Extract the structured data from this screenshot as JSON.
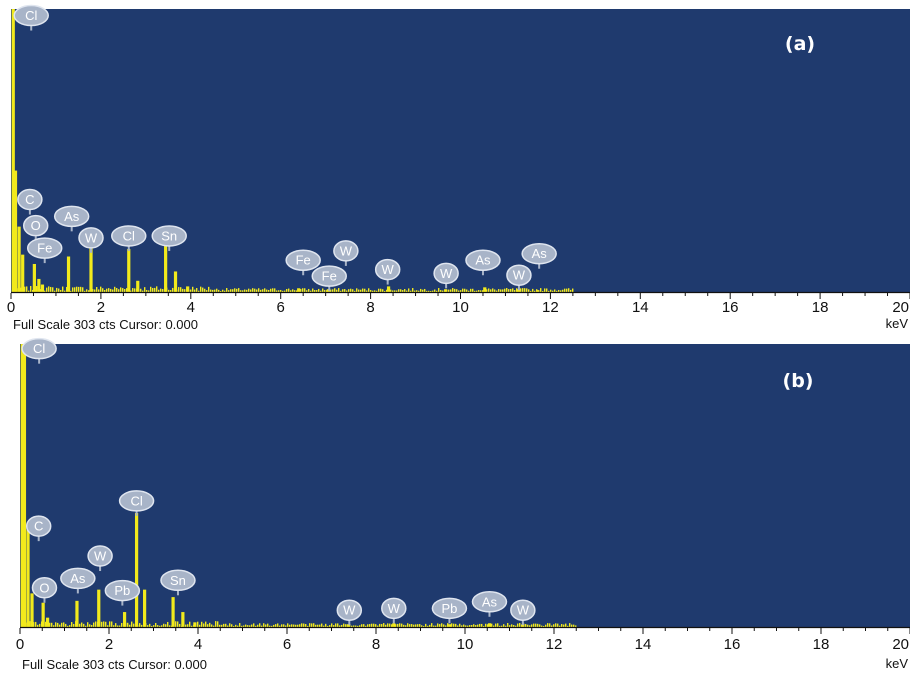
{
  "colors": {
    "plot_background": "#1f3a6e",
    "spectrum": "#f2ea1c",
    "peak_tag_fill": "#a8b4c8",
    "peak_tag_stroke": "#dfe5ef",
    "axis": "#111111"
  },
  "chart_data": [
    {
      "type": "bar",
      "panel_label": "(a)",
      "status_text": "Full Scale 303 cts Cursor: 0.000",
      "xlabel": "keV",
      "xlim": [
        0,
        20
      ],
      "ylim": [
        0,
        303
      ],
      "xticks": [
        0,
        2,
        4,
        6,
        8,
        10,
        12,
        14,
        16,
        18,
        20
      ],
      "spectrum": [
        {
          "kev": 0.05,
          "counts": 303
        },
        {
          "kev": 0.1,
          "counts": 130
        },
        {
          "kev": 0.18,
          "counts": 70
        },
        {
          "kev": 0.26,
          "counts": 40
        },
        {
          "kev": 0.52,
          "counts": 30
        },
        {
          "kev": 0.62,
          "counts": 14
        },
        {
          "kev": 0.7,
          "counts": 8
        },
        {
          "kev": 1.28,
          "counts": 38
        },
        {
          "kev": 1.78,
          "counts": 48
        },
        {
          "kev": 2.62,
          "counts": 46
        },
        {
          "kev": 2.82,
          "counts": 12
        },
        {
          "kev": 3.44,
          "counts": 50
        },
        {
          "kev": 3.66,
          "counts": 22
        },
        {
          "kev": 3.93,
          "counts": 6
        },
        {
          "kev": 6.4,
          "counts": 4
        },
        {
          "kev": 7.06,
          "counts": 3
        },
        {
          "kev": 8.4,
          "counts": 6
        },
        {
          "kev": 9.67,
          "counts": 3
        },
        {
          "kev": 10.54,
          "counts": 5
        },
        {
          "kev": 11.29,
          "counts": 3
        },
        {
          "kev": 11.72,
          "counts": 2
        }
      ],
      "peak_labels": [
        {
          "text": "Cl",
          "kev": 0.45,
          "counts": 296
        },
        {
          "text": "C",
          "kev": 0.42,
          "counts": 99
        },
        {
          "text": "O",
          "kev": 0.55,
          "counts": 71
        },
        {
          "text": "As",
          "kev": 1.35,
          "counts": 81
        },
        {
          "text": "Fe",
          "kev": 0.75,
          "counts": 47
        },
        {
          "text": "W",
          "kev": 1.78,
          "counts": 58
        },
        {
          "text": "Cl",
          "kev": 2.62,
          "counts": 60
        },
        {
          "text": "Sn",
          "kev": 3.52,
          "counts": 60
        },
        {
          "text": "Fe",
          "kev": 6.5,
          "counts": 34
        },
        {
          "text": "W",
          "kev": 7.45,
          "counts": 44
        },
        {
          "text": "Fe",
          "kev": 7.08,
          "counts": 17
        },
        {
          "text": "W",
          "kev": 8.38,
          "counts": 24
        },
        {
          "text": "W",
          "kev": 9.68,
          "counts": 20
        },
        {
          "text": "As",
          "kev": 10.5,
          "counts": 34
        },
        {
          "text": "W",
          "kev": 11.3,
          "counts": 18
        },
        {
          "text": "As",
          "kev": 11.75,
          "counts": 41
        }
      ]
    },
    {
      "type": "bar",
      "panel_label": "(b)",
      "status_text": "Full Scale 303 cts Cursor: 0.000",
      "xlabel": "keV",
      "xlim": [
        0,
        20
      ],
      "ylim": [
        0,
        303
      ],
      "xticks": [
        0,
        2,
        4,
        6,
        8,
        10,
        12,
        14,
        16,
        18,
        20
      ],
      "spectrum": [
        {
          "kev": 0.05,
          "counts": 303
        },
        {
          "kev": 0.1,
          "counts": 303
        },
        {
          "kev": 0.18,
          "counts": 110
        },
        {
          "kev": 0.27,
          "counts": 36
        },
        {
          "kev": 0.52,
          "counts": 26
        },
        {
          "kev": 0.62,
          "counts": 10
        },
        {
          "kev": 1.28,
          "counts": 28
        },
        {
          "kev": 1.77,
          "counts": 40
        },
        {
          "kev": 2.35,
          "counts": 16
        },
        {
          "kev": 2.62,
          "counts": 122
        },
        {
          "kev": 2.8,
          "counts": 40
        },
        {
          "kev": 3.44,
          "counts": 32
        },
        {
          "kev": 3.66,
          "counts": 16
        },
        {
          "kev": 3.93,
          "counts": 5
        },
        {
          "kev": 7.38,
          "counts": 3
        },
        {
          "kev": 8.4,
          "counts": 4
        },
        {
          "kev": 9.66,
          "counts": 3
        },
        {
          "kev": 10.55,
          "counts": 4
        },
        {
          "kev": 11.3,
          "counts": 3
        }
      ],
      "peak_labels": [
        {
          "text": "Cl",
          "kev": 0.43,
          "counts": 298
        },
        {
          "text": "Cl",
          "kev": 2.62,
          "counts": 135
        },
        {
          "text": "C",
          "kev": 0.42,
          "counts": 108
        },
        {
          "text": "W",
          "kev": 1.8,
          "counts": 76
        },
        {
          "text": "As",
          "kev": 1.3,
          "counts": 52
        },
        {
          "text": "O",
          "kev": 0.55,
          "counts": 42
        },
        {
          "text": "Pb",
          "kev": 2.3,
          "counts": 39
        },
        {
          "text": "Sn",
          "kev": 3.55,
          "counts": 50
        },
        {
          "text": "W",
          "kev": 7.4,
          "counts": 18
        },
        {
          "text": "W",
          "kev": 8.4,
          "counts": 20
        },
        {
          "text": "Pb",
          "kev": 9.65,
          "counts": 20
        },
        {
          "text": "As",
          "kev": 10.55,
          "counts": 27
        },
        {
          "text": "W",
          "kev": 11.3,
          "counts": 18
        }
      ]
    }
  ]
}
